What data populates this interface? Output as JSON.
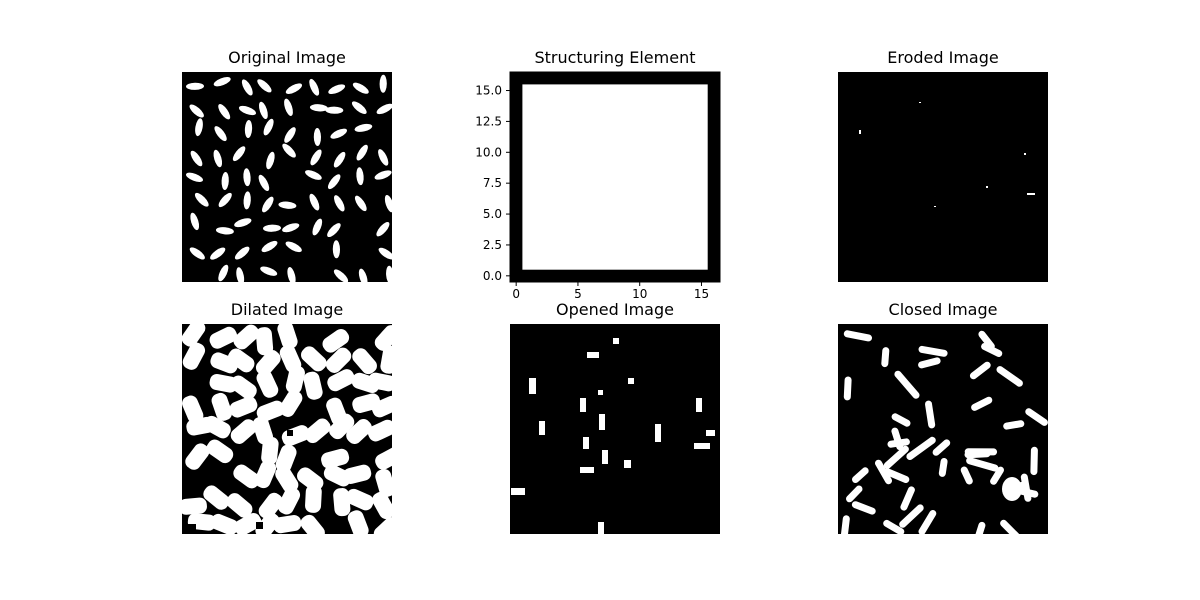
{
  "figure": {
    "panels": [
      {
        "key": "original",
        "title": "Original Image"
      },
      {
        "key": "structuring",
        "title": "Structuring Element"
      },
      {
        "key": "eroded",
        "title": "Eroded Image"
      },
      {
        "key": "dilated",
        "title": "Dilated Image"
      },
      {
        "key": "opened",
        "title": "Opened Image"
      },
      {
        "key": "closed",
        "title": "Closed Image"
      }
    ]
  },
  "chart_data": {
    "type": "heatmap",
    "title": "Structuring Element",
    "colormap": "gray",
    "matrix_size": 17,
    "inner_one_block": [
      1,
      15
    ],
    "xlim": [
      -0.5,
      16.5
    ],
    "ylim": [
      16.5,
      -0.5
    ],
    "x_ticks": [
      0,
      5,
      10,
      15
    ],
    "y_ticks": [
      0.0,
      2.5,
      5.0,
      7.5,
      10.0,
      12.5,
      15.0
    ],
    "x_tick_labels": [
      "0",
      "5",
      "10",
      "15"
    ],
    "y_tick_labels": [
      "0.0",
      "2.5",
      "5.0",
      "7.5",
      "10.0",
      "12.5",
      "15.0"
    ]
  },
  "colors": {
    "foreground": "#ffffff",
    "background": "#000000",
    "page": "#ffffff"
  }
}
